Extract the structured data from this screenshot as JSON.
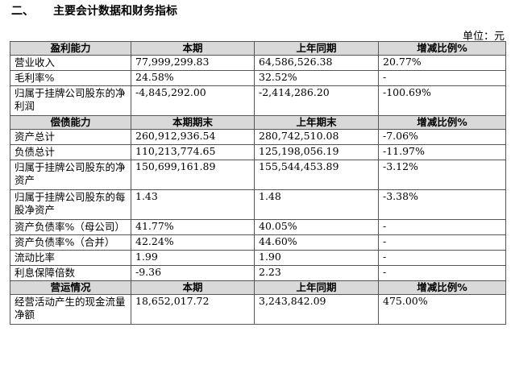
{
  "heading": {
    "number": "二、",
    "title": "主要会计数据和财务指标"
  },
  "unit": "单位：元",
  "sections": [
    {
      "columns": [
        "盈利能力",
        "本期",
        "上年同期",
        "增减比例%"
      ],
      "rows": [
        [
          "营业收入",
          "77,999,299.83",
          "64,586,526.38",
          "20.77%"
        ],
        [
          "毛利率%",
          "24.58%",
          "32.52%",
          "-"
        ],
        [
          "归属于挂牌公司股东的净利润",
          "-4,845,292.00",
          "-2,414,286.20",
          "-100.69%"
        ]
      ]
    },
    {
      "columns": [
        "偿债能力",
        "本期期末",
        "上年期末",
        "增减比例%"
      ],
      "rows": [
        [
          "资产总计",
          "260,912,936.54",
          "280,742,510.08",
          "-7.06%"
        ],
        [
          "负债总计",
          "110,213,774.65",
          "125,198,056.19",
          "-11.97%"
        ],
        [
          "归属于挂牌公司股东的净资产",
          "150,699,161.89",
          "155,544,453.89",
          "-3.12%"
        ],
        [
          "归属于挂牌公司股东的每股净资产",
          "1.43",
          "1.48",
          "-3.38%"
        ],
        [
          "资产负债率%（母公司）",
          "41.77%",
          "40.05%",
          "-"
        ],
        [
          "资产负债率%（合并）",
          "42.24%",
          "44.60%",
          "-"
        ],
        [
          "流动比率",
          "1.99",
          "1.90",
          "-"
        ],
        [
          "利息保障倍数",
          "-9.36",
          "2.23",
          "-"
        ]
      ]
    },
    {
      "columns": [
        "营运情况",
        "本期",
        "上年同期",
        "增减比例%"
      ],
      "rows": [
        [
          "经营活动产生的现金流量净额",
          "18,652,017.72",
          "3,243,842.09",
          "475.00%"
        ]
      ]
    }
  ],
  "colors": {
    "header_bg": "#d9d9d9",
    "border": "#555555",
    "text": "#000000"
  }
}
